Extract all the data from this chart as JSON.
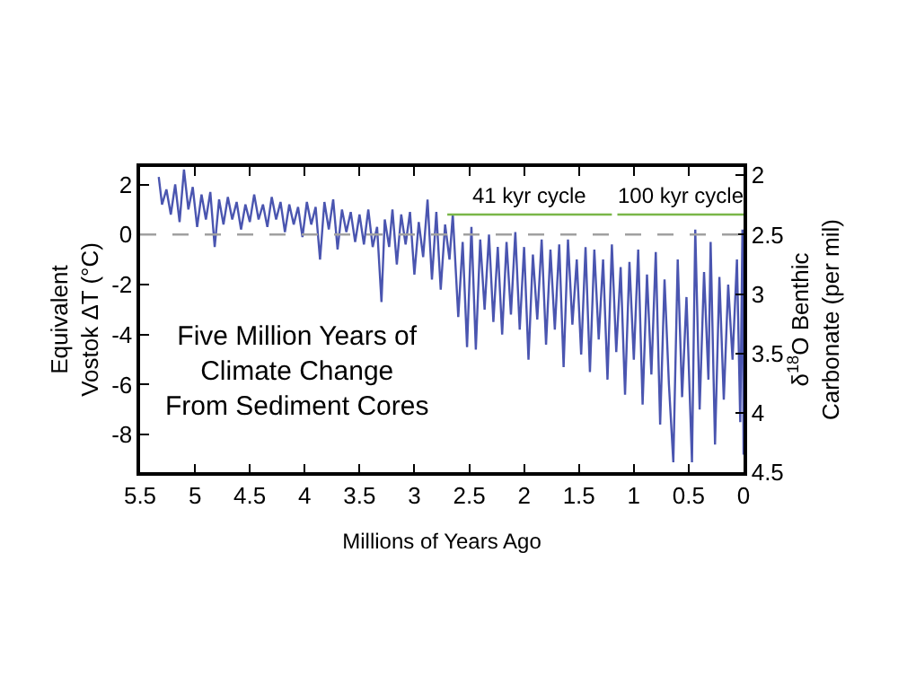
{
  "chart_data": {
    "type": "line",
    "xlabel": "Millions of Years Ago",
    "ylabel": "Equivalent\nVostok ΔT (°C)",
    "y2label": "δ$^{18}$O Benthic\nCarbonate (per mil)",
    "annotations": [
      "Five Million Years of\nClimate Change\nFrom Sediment Cores"
    ],
    "x": [
      5.33,
      5.3,
      5.26,
      5.22,
      5.18,
      5.14,
      5.1,
      5.06,
      5.02,
      4.98,
      4.94,
      4.9,
      4.86,
      4.82,
      4.78,
      4.74,
      4.7,
      4.66,
      4.62,
      4.58,
      4.54,
      4.5,
      4.46,
      4.42,
      4.38,
      4.34,
      4.3,
      4.26,
      4.22,
      4.18,
      4.14,
      4.1,
      4.06,
      4.02,
      3.98,
      3.94,
      3.9,
      3.86,
      3.82,
      3.78,
      3.74,
      3.7,
      3.66,
      3.62,
      3.58,
      3.54,
      3.5,
      3.46,
      3.42,
      3.38,
      3.34,
      3.3,
      3.27,
      3.23,
      3.2,
      3.16,
      3.12,
      3.08,
      3.04,
      3.0,
      2.96,
      2.92,
      2.88,
      2.84,
      2.8,
      2.76,
      2.72,
      2.68,
      2.65,
      2.6,
      2.56,
      2.52,
      2.48,
      2.44,
      2.4,
      2.36,
      2.32,
      2.28,
      2.24,
      2.2,
      2.16,
      2.12,
      2.08,
      2.04,
      2.0,
      1.96,
      1.92,
      1.88,
      1.84,
      1.8,
      1.76,
      1.72,
      1.68,
      1.64,
      1.6,
      1.56,
      1.52,
      1.48,
      1.44,
      1.4,
      1.36,
      1.32,
      1.28,
      1.24,
      1.2,
      1.16,
      1.12,
      1.08,
      1.04,
      1.0,
      0.96,
      0.92,
      0.88,
      0.84,
      0.8,
      0.76,
      0.72,
      0.68,
      0.64,
      0.6,
      0.56,
      0.52,
      0.47,
      0.44,
      0.4,
      0.36,
      0.32,
      0.3,
      0.26,
      0.22,
      0.18,
      0.14,
      0.1,
      0.06,
      0.03,
      0.01,
      0.0
    ],
    "series": [
      {
        "color": "#4a55b0",
        "values": [
          2.3,
          1.2,
          1.8,
          0.8,
          2.0,
          0.5,
          2.6,
          1.0,
          1.9,
          0.3,
          1.6,
          0.6,
          1.7,
          -0.5,
          1.4,
          0.4,
          1.5,
          0.6,
          1.3,
          0.2,
          1.2,
          0.5,
          1.6,
          0.6,
          1.2,
          0.3,
          1.5,
          0.6,
          1.3,
          0.1,
          1.2,
          0.4,
          1.1,
          -0.1,
          1.3,
          0.4,
          1.1,
          -1.0,
          1.3,
          0.2,
          1.4,
          -0.6,
          1.0,
          0.1,
          0.9,
          -0.3,
          0.8,
          -0.4,
          1.0,
          -0.5,
          0.3,
          -2.7,
          0.6,
          -0.5,
          1.0,
          -1.2,
          0.8,
          -0.4,
          0.9,
          -1.6,
          0.5,
          -0.9,
          1.4,
          -1.8,
          0.9,
          -2.2,
          0.4,
          -1.0,
          0.8,
          -3.3,
          -0.3,
          -4.5,
          0.3,
          -4.6,
          -0.2,
          -3.0,
          0.0,
          -3.5,
          -0.5,
          -4.0,
          -0.3,
          -3.2,
          0.1,
          -3.8,
          -0.5,
          -5.0,
          -0.8,
          -3.4,
          -0.2,
          -4.4,
          -0.6,
          -3.8,
          -0.4,
          -5.3,
          -0.2,
          -3.6,
          -1.0,
          -4.8,
          -0.5,
          -5.5,
          -0.6,
          -4.2,
          -1.0,
          -5.8,
          -0.4,
          -4.7,
          -1.3,
          -6.4,
          -1.1,
          -5.0,
          -0.6,
          -6.8,
          -1.6,
          -5.6,
          -0.7,
          -7.6,
          -1.8,
          -6.0,
          -9.1,
          -1.0,
          -6.5,
          -2.5,
          -9.1,
          0.2,
          -7.0,
          -1.5,
          -5.8,
          -0.3,
          -8.4,
          -1.7,
          -6.6,
          -2.0,
          -5.0,
          -1.0,
          -7.5,
          0.2,
          -8.8
        ]
      },
      {
        "type": "line",
        "name": "41 kyr cycle",
        "color": "#7ab648",
        "x": [
          2.7,
          1.2
        ],
        "values": [
          0.8,
          0.8
        ]
      },
      {
        "type": "line",
        "name": "100 kyr cycle",
        "color": "#7ab648",
        "x": [
          1.15,
          0
        ],
        "values": [
          0.8,
          0.8
        ]
      }
    ],
    "xlim": [
      5.5,
      0
    ],
    "xticks": [
      5.5,
      5,
      4.5,
      4,
      3.5,
      3,
      2.5,
      2,
      1.5,
      1,
      0.5,
      0
    ],
    "ylim": [
      -9.5,
      2.7
    ],
    "yticks": [
      -8,
      -6,
      -4,
      -2,
      0,
      2
    ],
    "y2lim": [
      4.5,
      1.93
    ],
    "y2ticks": [
      2,
      2.5,
      3,
      3.5,
      4,
      4.5
    ],
    "ref_lines": [
      {
        "axis": "y",
        "value": 0,
        "color": "#a0a0a0",
        "line_style": "dashed"
      }
    ],
    "legend": false,
    "marker": "none",
    "line_style": "solid"
  }
}
